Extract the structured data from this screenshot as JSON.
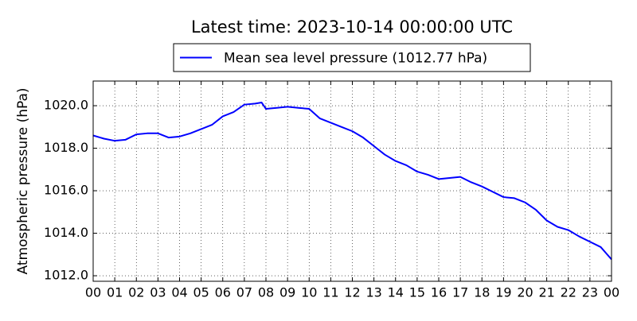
{
  "chart_data": {
    "type": "line",
    "title": "Latest time: 2023-10-14 00:00:00 UTC",
    "y_label": "Atmospheric pressure (hPa)",
    "x": [
      0,
      0.5,
      1,
      1.5,
      2,
      2.5,
      3,
      3.5,
      4,
      4.5,
      5,
      5.5,
      6,
      6.5,
      7,
      7.5,
      7.8,
      8,
      8.5,
      9,
      9.5,
      10,
      10.5,
      11,
      11.5,
      12,
      12.5,
      13,
      13.5,
      14,
      14.5,
      15,
      15.5,
      16,
      16.5,
      17,
      17.5,
      18,
      18.5,
      19,
      19.5,
      20,
      20.5,
      21,
      21.5,
      22,
      22.5,
      23,
      23.5,
      24
    ],
    "series": [
      {
        "name": "Mean sea level pressure (1012.77 hPa)",
        "color": "#0000ff",
        "values": [
          1018.6,
          1018.45,
          1018.35,
          1018.4,
          1018.65,
          1018.7,
          1018.7,
          1018.5,
          1018.55,
          1018.7,
          1018.9,
          1019.1,
          1019.5,
          1019.7,
          1020.05,
          1020.1,
          1020.15,
          1019.85,
          1019.9,
          1019.95,
          1019.9,
          1019.85,
          1019.4,
          1019.2,
          1019.0,
          1018.8,
          1018.5,
          1018.1,
          1017.7,
          1017.4,
          1017.2,
          1016.9,
          1016.75,
          1016.55,
          1016.6,
          1016.65,
          1016.4,
          1016.2,
          1015.95,
          1015.7,
          1015.65,
          1015.45,
          1015.1,
          1014.6,
          1014.3,
          1014.15,
          1013.85,
          1013.6,
          1013.35,
          1012.77
        ]
      }
    ],
    "xlim": [
      0,
      24
    ],
    "xticks": [
      {
        "value": 0,
        "label": "00"
      },
      {
        "value": 1,
        "label": "01"
      },
      {
        "value": 2,
        "label": "02"
      },
      {
        "value": 3,
        "label": "03"
      },
      {
        "value": 4,
        "label": "04"
      },
      {
        "value": 5,
        "label": "05"
      },
      {
        "value": 6,
        "label": "06"
      },
      {
        "value": 7,
        "label": "07"
      },
      {
        "value": 8,
        "label": "08"
      },
      {
        "value": 9,
        "label": "09"
      },
      {
        "value": 10,
        "label": "10"
      },
      {
        "value": 11,
        "label": "11"
      },
      {
        "value": 12,
        "label": "12"
      },
      {
        "value": 13,
        "label": "13"
      },
      {
        "value": 14,
        "label": "14"
      },
      {
        "value": 15,
        "label": "15"
      },
      {
        "value": 16,
        "label": "16"
      },
      {
        "value": 17,
        "label": "17"
      },
      {
        "value": 18,
        "label": "18"
      },
      {
        "value": 19,
        "label": "19"
      },
      {
        "value": 20,
        "label": "20"
      },
      {
        "value": 21,
        "label": "21"
      },
      {
        "value": 22,
        "label": "22"
      },
      {
        "value": 23,
        "label": "23"
      },
      {
        "value": 24,
        "label": "00"
      }
    ],
    "ylim": [
      1011.74,
      1021.16
    ],
    "yticks": [
      {
        "value": 1012,
        "label": "1012.0"
      },
      {
        "value": 1014,
        "label": "1014.0"
      },
      {
        "value": 1016,
        "label": "1016.0"
      },
      {
        "value": 1018,
        "label": "1018.0"
      },
      {
        "value": 1020,
        "label": "1020.0"
      }
    ],
    "grid": true,
    "legend": "upper center"
  }
}
